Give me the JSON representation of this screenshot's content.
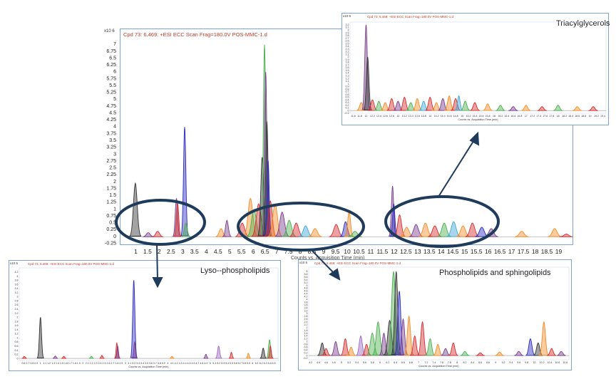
{
  "colors": {
    "series": [
      "#4caf50",
      "#7b3f8c",
      "#2d2dbf",
      "#d32f2f",
      "#f28c28",
      "#333333",
      "#3fa7d6",
      "#c9a227",
      "#e06fa0",
      "#9c6bc2",
      "#2e8b57",
      "#8b4513"
    ],
    "frame": "#7fa3d1",
    "ellipse": "#1f3b5c"
  },
  "icons": {
    "arrow": "arrow-icon"
  },
  "chart_data": [
    {
      "type": "line",
      "name_id": "main",
      "header": "Cpd 73: 6.469: +ESI ECC Scan Frag=180.0V POS-MMC-1.d",
      "multiplier": "x10 6",
      "xlabel": "Counts vs. Acquisition Time (min)",
      "xlim": [
        0.5,
        19.5
      ],
      "ylim": [
        -0.25,
        7.25
      ],
      "xticks": [
        "1",
        "1.5",
        "2",
        "2.5",
        "3",
        "3.5",
        "4",
        "4.5",
        "5",
        "5.5",
        "6",
        "6.5",
        "7",
        "7.5",
        "8",
        "8.5",
        "9",
        "9.5",
        "10",
        "10.5",
        "11",
        "11.5",
        "12",
        "12.5",
        "13",
        "13.5",
        "14",
        "14.5",
        "15",
        "15.5",
        "16",
        "16.5",
        "17",
        "17.5",
        "18",
        "18.5",
        "19"
      ],
      "yticks": [
        "-0.25",
        "0",
        "0.25",
        "0.5",
        "0.75",
        "1",
        "1.25",
        "1.5",
        "1.75",
        "2",
        "2.25",
        "2.5",
        "2.75",
        "3",
        "3.25",
        "3.5",
        "3.75",
        "4",
        "4.25",
        "4.5",
        "4.75",
        "5",
        "5.25",
        "5.5",
        "5.75",
        "6",
        "6.25",
        "6.5",
        "6.75",
        "7"
      ],
      "peaks": [
        [
          0.95,
          1.95,
          0.08,
          5
        ],
        [
          1.5,
          0.15,
          0.08,
          1
        ],
        [
          1.9,
          0.2,
          0.08,
          3
        ],
        [
          2.7,
          1.4,
          0.05,
          1
        ],
        [
          2.75,
          1.2,
          0.05,
          3
        ],
        [
          3.05,
          4.0,
          0.05,
          2
        ],
        [
          3.1,
          0.5,
          0.06,
          0
        ],
        [
          4.6,
          0.3,
          0.08,
          4
        ],
        [
          4.85,
          0.6,
          0.06,
          1
        ],
        [
          5.5,
          0.5,
          0.1,
          3
        ],
        [
          5.85,
          1.4,
          0.1,
          4
        ],
        [
          6.0,
          1.0,
          0.1,
          0
        ],
        [
          6.2,
          1.2,
          0.1,
          3
        ],
        [
          6.35,
          2.9,
          0.06,
          5
        ],
        [
          6.45,
          7.0,
          0.05,
          0
        ],
        [
          6.5,
          6.0,
          0.05,
          1
        ],
        [
          6.55,
          4.2,
          0.05,
          5
        ],
        [
          6.6,
          2.8,
          0.05,
          2
        ],
        [
          6.7,
          1.3,
          0.08,
          3
        ],
        [
          6.9,
          1.2,
          0.1,
          4
        ],
        [
          7.2,
          0.9,
          0.1,
          1
        ],
        [
          7.5,
          0.6,
          0.1,
          0
        ],
        [
          7.8,
          0.5,
          0.1,
          3
        ],
        [
          8.2,
          0.4,
          0.1,
          6
        ],
        [
          8.6,
          0.3,
          0.1,
          4
        ],
        [
          9.5,
          0.45,
          0.1,
          3
        ],
        [
          9.9,
          0.55,
          0.08,
          2
        ],
        [
          10.05,
          0.95,
          0.06,
          4
        ],
        [
          10.3,
          0.2,
          0.1,
          0
        ],
        [
          11.9,
          1.85,
          0.05,
          1
        ],
        [
          11.95,
          1.2,
          0.05,
          2
        ],
        [
          12.2,
          0.8,
          0.08,
          3
        ],
        [
          12.5,
          0.35,
          0.1,
          4
        ],
        [
          12.9,
          0.45,
          0.1,
          1
        ],
        [
          13.3,
          0.5,
          0.1,
          4
        ],
        [
          13.7,
          0.4,
          0.1,
          3
        ],
        [
          14.1,
          0.5,
          0.1,
          0
        ],
        [
          14.5,
          0.55,
          0.1,
          6
        ],
        [
          14.9,
          0.4,
          0.1,
          4
        ],
        [
          15.3,
          0.5,
          0.1,
          3
        ],
        [
          15.7,
          0.35,
          0.1,
          2
        ],
        [
          16.1,
          0.3,
          0.1,
          1
        ],
        [
          17.4,
          0.2,
          0.1,
          4
        ],
        [
          18.8,
          0.3,
          0.1,
          4
        ],
        [
          19.3,
          0.1,
          0.1,
          3
        ]
      ]
    },
    {
      "type": "line",
      "name_id": "tag",
      "header": "Cpd 73: 6.469: +ESI ECC Scan Frag=180.0V POS-MMC-1.d",
      "multiplier": "x10 6",
      "title": "Triacylglycerols",
      "xlabel": "Counts vs. Acquisition Time (min)",
      "xlim": [
        11.5,
        19.5
      ],
      "ylim": [
        -0.1,
        3.3
      ],
      "xticks": [
        "11.6",
        "11.8",
        "12",
        "12.2",
        "12.4",
        "12.6",
        "12.8",
        "13",
        "13.2",
        "13.4",
        "13.6",
        "13.8",
        "14",
        "14.2",
        "14.4",
        "14.6",
        "14.8",
        "15",
        "15.2",
        "15.4",
        "15.6",
        "15.8",
        "16",
        "16.2",
        "16.4",
        "16.6",
        "16.8",
        "17",
        "17.2",
        "17.4",
        "17.6",
        "17.8",
        "18",
        "18.2",
        "18.4",
        "18.6",
        "18.8",
        "19",
        "19.2",
        "19.4"
      ],
      "yticks": [
        "-0.1",
        "0",
        "0.1",
        "0.2",
        "0.3",
        "0.4",
        "0.5",
        "0.6",
        "0.7",
        "0.8",
        "0.9",
        "1",
        "1.1",
        "1.2",
        "1.3",
        "1.4",
        "1.5",
        "1.6",
        "1.7",
        "1.8",
        "1.9",
        "2",
        "2.1",
        "2.2",
        "2.3",
        "2.4",
        "2.5",
        "2.6",
        "2.7",
        "2.8",
        "2.9",
        "3",
        "3.1",
        "3.2"
      ],
      "peaks": [
        [
          11.85,
          0.3,
          0.05,
          4
        ],
        [
          12.0,
          3.2,
          0.04,
          1
        ],
        [
          12.05,
          2.0,
          0.04,
          5
        ],
        [
          12.2,
          0.4,
          0.05,
          3
        ],
        [
          12.4,
          0.35,
          0.05,
          0
        ],
        [
          12.6,
          0.3,
          0.05,
          4
        ],
        [
          12.8,
          0.45,
          0.05,
          3
        ],
        [
          13.0,
          0.35,
          0.05,
          1
        ],
        [
          13.2,
          0.5,
          0.05,
          3
        ],
        [
          13.4,
          0.3,
          0.05,
          0
        ],
        [
          13.6,
          0.45,
          0.05,
          4
        ],
        [
          13.8,
          0.35,
          0.05,
          6
        ],
        [
          14.0,
          0.5,
          0.05,
          3
        ],
        [
          14.2,
          0.3,
          0.05,
          4
        ],
        [
          14.4,
          0.45,
          0.05,
          1
        ],
        [
          14.6,
          0.55,
          0.05,
          4
        ],
        [
          14.8,
          0.45,
          0.05,
          3
        ],
        [
          14.9,
          0.55,
          0.04,
          6
        ],
        [
          15.1,
          0.35,
          0.05,
          0
        ],
        [
          15.4,
          0.3,
          0.05,
          3
        ],
        [
          15.8,
          0.25,
          0.05,
          4
        ],
        [
          16.2,
          0.2,
          0.05,
          0
        ],
        [
          16.6,
          0.15,
          0.05,
          1
        ],
        [
          17.0,
          0.2,
          0.05,
          4
        ],
        [
          17.5,
          0.15,
          0.05,
          3
        ],
        [
          18.0,
          0.2,
          0.05,
          0
        ],
        [
          18.6,
          0.15,
          0.05,
          4
        ],
        [
          19.1,
          0.15,
          0.05,
          3
        ]
      ]
    },
    {
      "type": "line",
      "name_id": "lyso",
      "header": "Cpd 73: 6.469: +ESI ECC Scan Frag=180.0V POS-MMC-1.d",
      "multiplier": "x10 5",
      "title": "Lyso--phospholipids",
      "xlabel": "Counts vs. Acquisition Time (min)",
      "xlim": [
        0.5,
        6.6
      ],
      "ylim": [
        -0.1,
        4.4
      ],
      "xticks": [
        "0.6",
        "0.7",
        "0.8",
        "0.9",
        "1",
        "1.1",
        "1.2",
        "1.3",
        "1.4",
        "1.5",
        "1.6",
        "1.7",
        "1.8",
        "1.9",
        "2",
        "2.1",
        "2.2",
        "2.3",
        "2.4",
        "2.5",
        "2.6",
        "2.7",
        "2.8",
        "2.9",
        "3",
        "3.1",
        "3.2",
        "3.3",
        "3.4",
        "3.5",
        "3.6",
        "3.7",
        "3.8",
        "3.9",
        "4",
        "4.1",
        "4.2",
        "4.3",
        "4.4",
        "4.5",
        "4.6",
        "4.7",
        "4.8",
        "4.9",
        "5",
        "5.1",
        "5.2",
        "5.3",
        "5.4",
        "5.5",
        "5.6",
        "5.7",
        "5.8",
        "5.9",
        "6",
        "6.1",
        "6.2",
        "6.3",
        "6.4",
        "6.5"
      ],
      "yticks": [
        "0",
        "0.2",
        "0.4",
        "0.6",
        "0.8",
        "1",
        "1.2",
        "1.4",
        "1.6",
        "1.8",
        "2",
        "2.2",
        "2.4",
        "2.6",
        "2.8",
        "3",
        "3.2",
        "3.4",
        "3.6",
        "3.8",
        "4",
        "4.2"
      ],
      "peaks": [
        [
          0.62,
          0.1,
          0.02,
          3
        ],
        [
          1.0,
          2.0,
          0.025,
          5
        ],
        [
          1.35,
          0.12,
          0.02,
          1
        ],
        [
          1.55,
          0.1,
          0.02,
          3
        ],
        [
          2.2,
          0.1,
          0.02,
          0
        ],
        [
          2.45,
          0.15,
          0.02,
          3
        ],
        [
          2.8,
          0.75,
          0.018,
          3
        ],
        [
          2.82,
          0.6,
          0.018,
          1
        ],
        [
          3.2,
          3.8,
          0.025,
          2
        ],
        [
          3.22,
          0.8,
          0.02,
          1
        ],
        [
          4.1,
          0.1,
          0.02,
          4
        ],
        [
          4.9,
          0.2,
          0.02,
          1
        ],
        [
          5.2,
          0.6,
          0.025,
          9
        ],
        [
          5.5,
          0.3,
          0.02,
          3
        ],
        [
          5.9,
          0.25,
          0.02,
          4
        ],
        [
          6.25,
          0.5,
          0.025,
          5
        ],
        [
          6.4,
          0.9,
          0.025,
          0
        ],
        [
          6.42,
          0.6,
          0.02,
          3
        ]
      ]
    },
    {
      "type": "line",
      "name_id": "pl",
      "header": "Cpd 73: 6.469: +ESI ECC Scan Frag=180.0V POS-MMC-1.d",
      "multiplier": "x10 5",
      "title": "Phospholipids and sphingolipids",
      "xlabel": "Counts vs. Acquisition Time (min)",
      "xlim": [
        4.15,
        10.9
      ],
      "ylim": [
        -0.3,
        6.3
      ],
      "xticks": [
        "4.2",
        "4.4",
        "4.6",
        "4.8",
        "5",
        "5.2",
        "5.4",
        "5.6",
        "5.8",
        "6",
        "6.2",
        "6.4",
        "6.6",
        "6.8",
        "7",
        "7.2",
        "7.4",
        "7.6",
        "7.8",
        "8",
        "8.2",
        "8.4",
        "8.6",
        "8.8",
        "9",
        "9.2",
        "9.4",
        "9.6",
        "9.8",
        "10",
        "10.2",
        "10.4",
        "10.6",
        "10.8"
      ],
      "yticks": [
        "-0.2",
        "0",
        "0.2",
        "0.4",
        "0.6",
        "0.8",
        "1",
        "1.2",
        "1.4",
        "1.6",
        "1.8",
        "2",
        "2.2",
        "2.4",
        "2.6",
        "2.8",
        "3",
        "3.2",
        "3.4",
        "3.6",
        "3.8",
        "4",
        "4.2",
        "4.4",
        "4.6",
        "4.8",
        "5",
        "5.2",
        "5.4",
        "5.6",
        "5.8",
        "6"
      ],
      "peaks": [
        [
          4.5,
          0.9,
          0.04,
          5
        ],
        [
          4.6,
          0.5,
          0.04,
          3
        ],
        [
          4.85,
          1.0,
          0.04,
          1
        ],
        [
          5.1,
          1.2,
          0.04,
          3
        ],
        [
          5.25,
          0.6,
          0.04,
          4
        ],
        [
          5.5,
          1.4,
          0.04,
          9
        ],
        [
          5.65,
          0.8,
          0.04,
          3
        ],
        [
          5.8,
          1.6,
          0.05,
          0
        ],
        [
          5.95,
          2.4,
          0.05,
          0
        ],
        [
          6.1,
          1.6,
          0.04,
          1
        ],
        [
          6.25,
          2.5,
          0.05,
          5
        ],
        [
          6.35,
          6.0,
          0.05,
          0
        ],
        [
          6.42,
          6.0,
          0.04,
          5
        ],
        [
          6.5,
          4.6,
          0.04,
          2
        ],
        [
          6.6,
          2.6,
          0.04,
          1
        ],
        [
          6.75,
          2.8,
          0.04,
          4
        ],
        [
          6.9,
          1.4,
          0.04,
          3
        ],
        [
          7.1,
          2.4,
          0.04,
          3
        ],
        [
          7.3,
          1.2,
          0.04,
          0
        ],
        [
          7.5,
          0.8,
          0.04,
          4
        ],
        [
          7.7,
          0.5,
          0.04,
          1
        ],
        [
          7.9,
          0.9,
          0.04,
          3
        ],
        [
          8.2,
          0.3,
          0.04,
          0
        ],
        [
          8.6,
          0.2,
          0.04,
          3
        ],
        [
          9.1,
          0.25,
          0.04,
          4
        ],
        [
          9.6,
          0.3,
          0.04,
          1
        ],
        [
          9.9,
          1.2,
          0.04,
          2
        ],
        [
          10.1,
          0.9,
          0.04,
          5
        ],
        [
          10.25,
          2.4,
          0.04,
          4
        ],
        [
          10.45,
          0.5,
          0.04,
          3
        ],
        [
          10.7,
          0.3,
          0.04,
          1
        ]
      ]
    }
  ]
}
